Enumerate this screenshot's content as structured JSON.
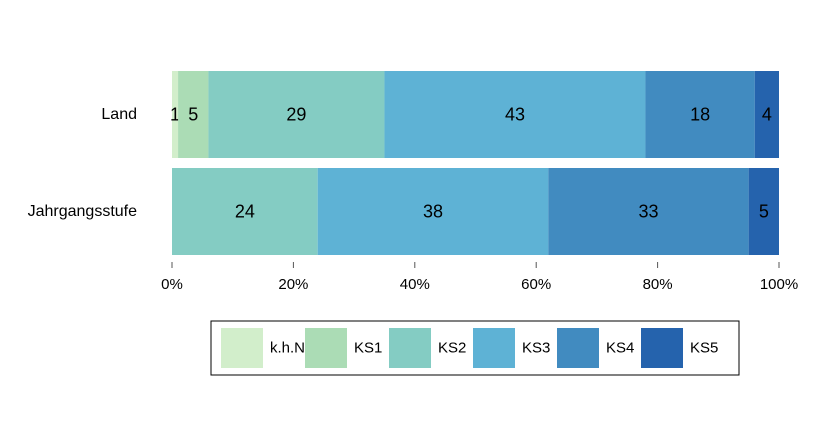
{
  "chart_data": {
    "type": "bar",
    "orientation": "horizontal",
    "stacked": true,
    "categories": [
      "Land",
      "Jahrgangsstufe"
    ],
    "series": [
      {
        "name": "k.h.N.",
        "color": "#d2eecb",
        "values": [
          1,
          0
        ]
      },
      {
        "name": "KS1",
        "color": "#abdcb5",
        "values": [
          5,
          0
        ]
      },
      {
        "name": "KS2",
        "color": "#84ccc3",
        "values": [
          29,
          24
        ]
      },
      {
        "name": "KS3",
        "color": "#5eb2d5",
        "values": [
          43,
          38
        ]
      },
      {
        "name": "KS4",
        "color": "#418bc0",
        "values": [
          18,
          33
        ]
      },
      {
        "name": "KS5",
        "color": "#2563ad",
        "values": [
          4,
          5
        ]
      }
    ],
    "xlim": [
      0,
      100
    ],
    "xticks": [
      "0%",
      "20%",
      "40%",
      "60%",
      "80%",
      "100%"
    ],
    "legend_position": "bottom",
    "grid": false
  }
}
